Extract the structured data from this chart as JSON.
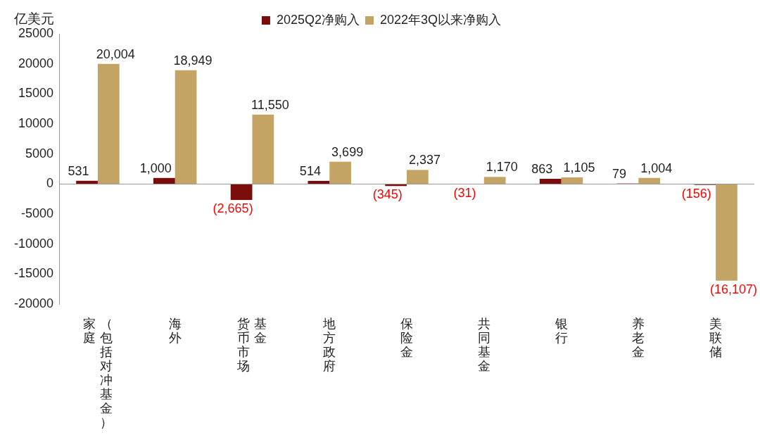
{
  "chart_data": {
    "type": "bar",
    "ylabel": "亿美元",
    "categories": [
      "家庭（包括对冲基金）",
      "海外",
      "货币市场基金",
      "地方政府",
      "保险金",
      "共同基金",
      "银行",
      "养老金",
      "美联储"
    ],
    "series": [
      {
        "name": "2025Q2净购入",
        "color": "#7b0c0c",
        "values": [
          531,
          1000,
          -2665,
          514,
          -345,
          -31,
          863,
          79,
          -156
        ],
        "value_labels": [
          "531",
          "1,000",
          "(2,665)",
          "514",
          "(345)",
          "(31)",
          "863",
          "79",
          "(156)"
        ]
      },
      {
        "name": "2022年3Q以来净购入",
        "color": "#c4a464",
        "values": [
          20004,
          18949,
          11550,
          3699,
          2337,
          1170,
          1105,
          1004,
          -16107
        ],
        "value_labels": [
          "20,004",
          "18,949",
          "11,550",
          "3,699",
          "2,337",
          "1,170",
          "1,105",
          "1,004",
          "(16,107)"
        ]
      }
    ],
    "ylim": [
      -20000,
      25000
    ],
    "yticks": [
      -20000,
      -15000,
      -10000,
      -5000,
      0,
      5000,
      10000,
      15000,
      20000,
      25000
    ],
    "ref_lines": [
      {
        "axis": "y",
        "value": 0,
        "color": "#999999"
      }
    ],
    "grid": false,
    "legend": "top"
  }
}
